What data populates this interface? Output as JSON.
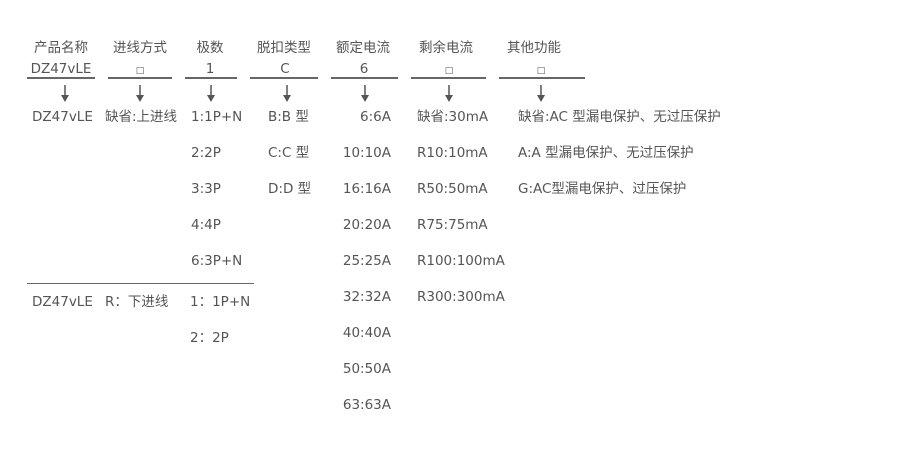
{
  "columns": [
    {
      "header": "产品名称",
      "code": "DZ47vLE",
      "values": [
        "DZ47vLE"
      ]
    },
    {
      "header": "进线方式",
      "code": "□",
      "values": [
        "缺省:上进线"
      ]
    },
    {
      "header": "极数",
      "code": "1",
      "values": [
        "1:1P+N",
        "2:2P",
        "3:3P",
        "4:4P",
        "6:3P+N"
      ]
    },
    {
      "header": "脱扣类型",
      "code": "C",
      "values": [
        "B:B 型",
        "C:C 型",
        "D:D 型"
      ]
    },
    {
      "header": "额定电流",
      "code": "6",
      "values": [
        "6:6A",
        "10:10A",
        "16:16A",
        "20:20A",
        "25:25A",
        "32:32A",
        "40:40A",
        "50:50A",
        "63:63A"
      ]
    },
    {
      "header": "剩余电流",
      "code": "□",
      "values": [
        "缺省:30mA",
        "R10:10mA",
        "R50:50mA",
        "R75:75mA",
        "R100:100mA",
        "R300:300mA"
      ]
    },
    {
      "header": "其他功能",
      "code": "□",
      "values": [
        "缺省:AC 型漏电保护、无过压保护",
        "A:A 型漏电保护、无过压保护",
        "G:AC型漏电保护、过压保护"
      ]
    }
  ],
  "variant": {
    "name": "DZ47vLE",
    "inlet": "R：下进线",
    "poles": [
      "1：1P+N",
      "2：2P"
    ]
  },
  "colors": {
    "text": "#555555",
    "line": "#666666"
  }
}
